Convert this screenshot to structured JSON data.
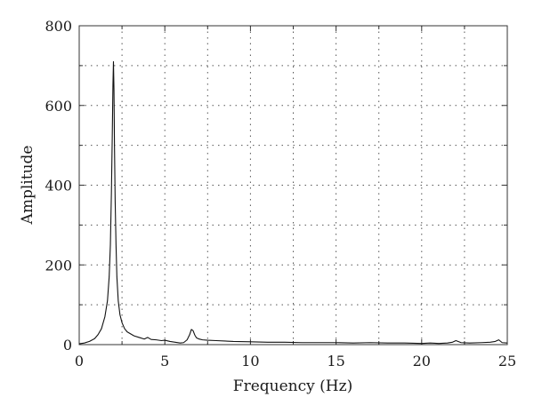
{
  "chart_data": {
    "type": "line",
    "xlabel": "Frequency (Hz)",
    "ylabel": "Amplitude",
    "xlim": [
      0,
      25
    ],
    "ylim": [
      0,
      800
    ],
    "grid": true,
    "x_ticks": [
      0,
      5,
      10,
      15,
      20,
      25
    ],
    "x_tick_labels": [
      "0",
      "5",
      "10",
      "15",
      "20",
      "25"
    ],
    "y_ticks": [
      0,
      200,
      400,
      600,
      800
    ],
    "y_tick_labels": [
      "0",
      "200",
      "400",
      "600",
      "800"
    ],
    "series": [
      {
        "x": [
          0,
          0.3,
          0.6,
          0.9,
          1.1,
          1.3,
          1.5,
          1.65,
          1.75,
          1.82,
          1.88,
          1.93,
          1.97,
          2.0,
          2.03,
          2.06,
          2.1,
          2.15,
          2.2,
          2.28,
          2.38,
          2.5,
          2.65,
          2.8,
          3.0,
          3.2,
          3.5,
          3.8,
          4.0,
          4.2,
          4.5,
          4.8,
          5.0,
          5.3,
          5.6,
          5.9,
          6.1,
          6.3,
          6.45,
          6.55,
          6.65,
          6.75,
          6.85,
          7.0,
          7.2,
          7.5,
          8.0,
          8.5,
          9.0,
          10.0,
          11.0,
          12.0,
          13.0,
          14.0,
          15.0,
          16.0,
          17.0,
          18.0,
          19.0,
          20.0,
          20.5,
          21.0,
          21.5,
          21.8,
          22.0,
          22.3,
          22.8,
          23.5,
          24.0,
          24.3,
          24.5,
          24.7,
          25.0
        ],
        "y": [
          2,
          4,
          8,
          15,
          25,
          40,
          70,
          110,
          170,
          250,
          380,
          520,
          650,
          710,
          640,
          500,
          360,
          250,
          170,
          110,
          75,
          55,
          40,
          32,
          27,
          22,
          18,
          14,
          18,
          13,
          12,
          10,
          11,
          8,
          6,
          4,
          5,
          12,
          25,
          38,
          35,
          24,
          17,
          14,
          12,
          11,
          10,
          9,
          8,
          7,
          6,
          6,
          5,
          5,
          5,
          4,
          5,
          4,
          4,
          3,
          4,
          3,
          4,
          6,
          10,
          5,
          4,
          5,
          6,
          8,
          12,
          5,
          4
        ]
      }
    ]
  }
}
